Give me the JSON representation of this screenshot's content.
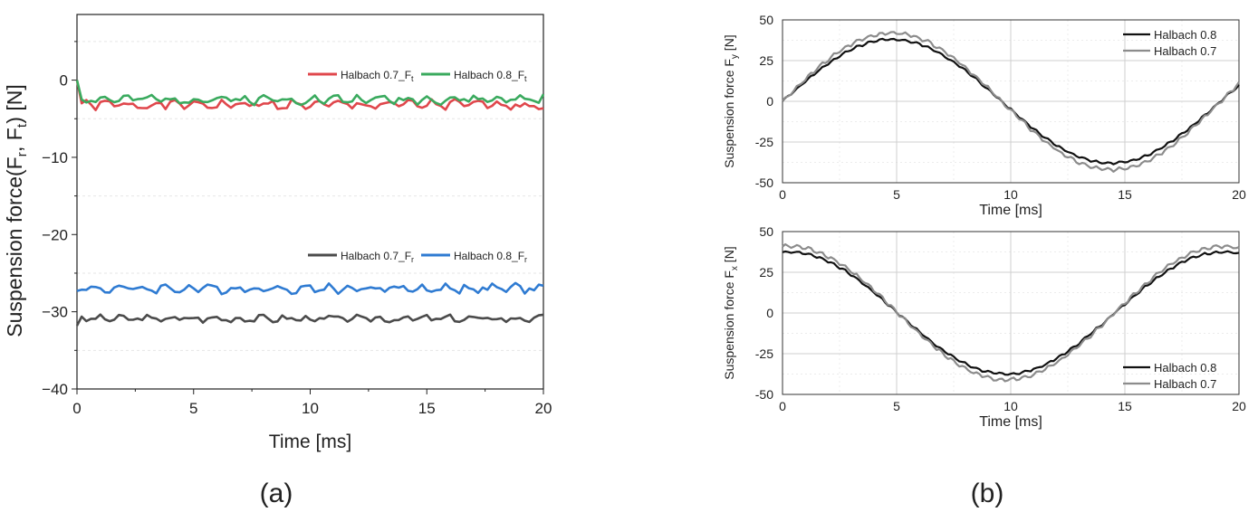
{
  "captions": {
    "a": "(a)",
    "b": "(b)"
  },
  "chart_data": [
    {
      "id": "a",
      "type": "line",
      "xlabel": "Time [ms]",
      "ylabel": "Suspension force(F",
      "ylabel_sub1": "r",
      "ylabel_mid": ", F",
      "ylabel_sub2": "t",
      "ylabel_end": ") [N]",
      "xlim": [
        0,
        20
      ],
      "ylim": [
        -40,
        8.5
      ],
      "xticks": [
        0,
        5,
        10,
        15,
        20
      ],
      "yticks": [
        0,
        -10,
        -20,
        -30,
        -40
      ],
      "yminor": [
        5,
        -5,
        -15,
        -25,
        -35
      ],
      "grid": true,
      "legends": [
        {
          "position": "upper",
          "entries": [
            {
              "label": "Halbach 0.7_F",
              "sub": "t",
              "color": "#e0474c"
            },
            {
              "label": "Halbach 0.8_F",
              "sub": "t",
              "color": "#3aaa5e"
            }
          ]
        },
        {
          "position": "lower",
          "entries": [
            {
              "label": "Halbach 0.7_F",
              "sub": "r",
              "color": "#4b4b4b"
            },
            {
              "label": "Halbach 0.8_F",
              "sub": "r",
              "color": "#2f7bd2"
            }
          ]
        }
      ],
      "series": [
        {
          "name": "Halbach 0.7_Ft",
          "color": "#e0474c",
          "base": -3.2,
          "amp": 0.6,
          "noise": 0.45,
          "start": 0,
          "seed": 1
        },
        {
          "name": "Halbach 0.8_Ft",
          "color": "#3aaa5e",
          "base": -2.5,
          "amp": 0.6,
          "noise": 0.4,
          "start": 0,
          "seed": 2
        },
        {
          "name": "Halbach 0.7_Fr",
          "color": "#4b4b4b",
          "base": -30.9,
          "amp": 0.4,
          "noise": 0.35,
          "start": -31.8,
          "seed": 3
        },
        {
          "name": "Halbach 0.8_Fr",
          "color": "#2f7bd2",
          "base": -27.0,
          "amp": 0.6,
          "noise": 0.4,
          "start": -27.3,
          "seed": 4
        }
      ]
    },
    {
      "id": "b-top",
      "type": "line",
      "xlabel": "Time [ms]",
      "ylabel": "Suspension force F",
      "ylabel_sub": "y",
      "ylabel_end": " [N]",
      "xlim": [
        0,
        20
      ],
      "ylim": [
        -50,
        50
      ],
      "xticks": [
        0,
        5,
        10,
        15,
        20
      ],
      "yticks": [
        50,
        25,
        0,
        -25,
        -50
      ],
      "grid": true,
      "legend": "top-right",
      "series": [
        {
          "name": "Halbach 0.8",
          "color": "#111111",
          "amp": 38,
          "phase": "sin",
          "offset": 0,
          "ripple": 0.6,
          "seed": 5
        },
        {
          "name": "Halbach 0.7",
          "color": "#8c8c8c",
          "amp": 42,
          "phase": "sin",
          "offset": 0,
          "ripple": 0.9,
          "seed": 6
        }
      ]
    },
    {
      "id": "b-bottom",
      "type": "line",
      "xlabel": "Time [ms]",
      "ylabel": "Suspension force F",
      "ylabel_sub": "x",
      "ylabel_end": " [N]",
      "xlim": [
        0,
        20
      ],
      "ylim": [
        -50,
        50
      ],
      "xticks": [
        0,
        5,
        10,
        15,
        20
      ],
      "yticks": [
        50,
        25,
        0,
        -25,
        -50
      ],
      "grid": true,
      "legend": "bottom-right",
      "series": [
        {
          "name": "Halbach 0.8",
          "color": "#111111",
          "amp": 37.5,
          "phase": "cos",
          "offset": 0,
          "ripple": 0.6,
          "seed": 7
        },
        {
          "name": "Halbach 0.7",
          "color": "#8c8c8c",
          "amp": 41,
          "phase": "cos",
          "offset": 0,
          "ripple": 0.9,
          "seed": 8
        }
      ]
    }
  ]
}
